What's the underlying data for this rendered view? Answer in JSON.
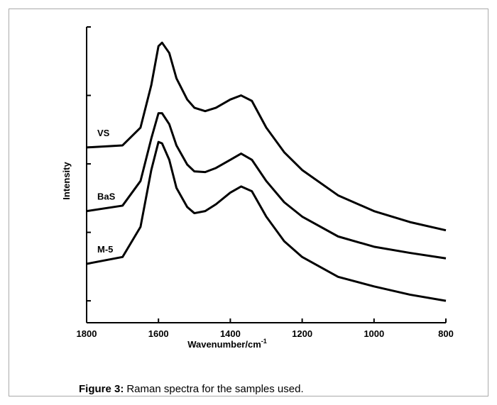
{
  "chart_data": {
    "type": "line",
    "xlabel": "Wavenumber/cm",
    "xlabel_superscript": "-1",
    "ylabel": "Intensity",
    "caption_label": "Figure 3:",
    "caption_text": "Raman spectra for the samples used.",
    "x": [
      1800,
      1700,
      1650,
      1620,
      1600,
      1590,
      1570,
      1550,
      1520,
      1500,
      1470,
      1440,
      1400,
      1370,
      1340,
      1300,
      1250,
      1200,
      1100,
      1000,
      900,
      800
    ],
    "series": [
      {
        "name": "VS",
        "color": "#000000",
        "values": [
          2.24,
          2.27,
          2.53,
          3.15,
          3.72,
          3.77,
          3.62,
          3.25,
          2.94,
          2.82,
          2.77,
          2.82,
          2.94,
          3.0,
          2.92,
          2.53,
          2.17,
          1.91,
          1.54,
          1.31,
          1.15,
          1.03
        ]
      },
      {
        "name": "BaS",
        "color": "#000000",
        "values": [
          1.31,
          1.39,
          1.75,
          2.37,
          2.74,
          2.74,
          2.58,
          2.27,
          1.99,
          1.89,
          1.88,
          1.94,
          2.06,
          2.15,
          2.06,
          1.75,
          1.44,
          1.23,
          0.94,
          0.79,
          0.7,
          0.62
        ]
      },
      {
        "name": "M-5",
        "color": "#000000",
        "values": [
          0.54,
          0.64,
          1.08,
          1.91,
          2.32,
          2.3,
          2.06,
          1.65,
          1.37,
          1.28,
          1.31,
          1.41,
          1.58,
          1.67,
          1.6,
          1.23,
          0.87,
          0.64,
          0.35,
          0.21,
          0.09,
          0.0
        ]
      }
    ],
    "xlim": [
      1800,
      800
    ],
    "xticks": [
      1800,
      1600,
      1400,
      1200,
      1000,
      800
    ],
    "ylim": [
      -0.32,
      4
    ],
    "yticks": [
      0,
      1,
      2,
      3,
      4
    ],
    "ytick_labels": false,
    "legend": "inline-left"
  }
}
